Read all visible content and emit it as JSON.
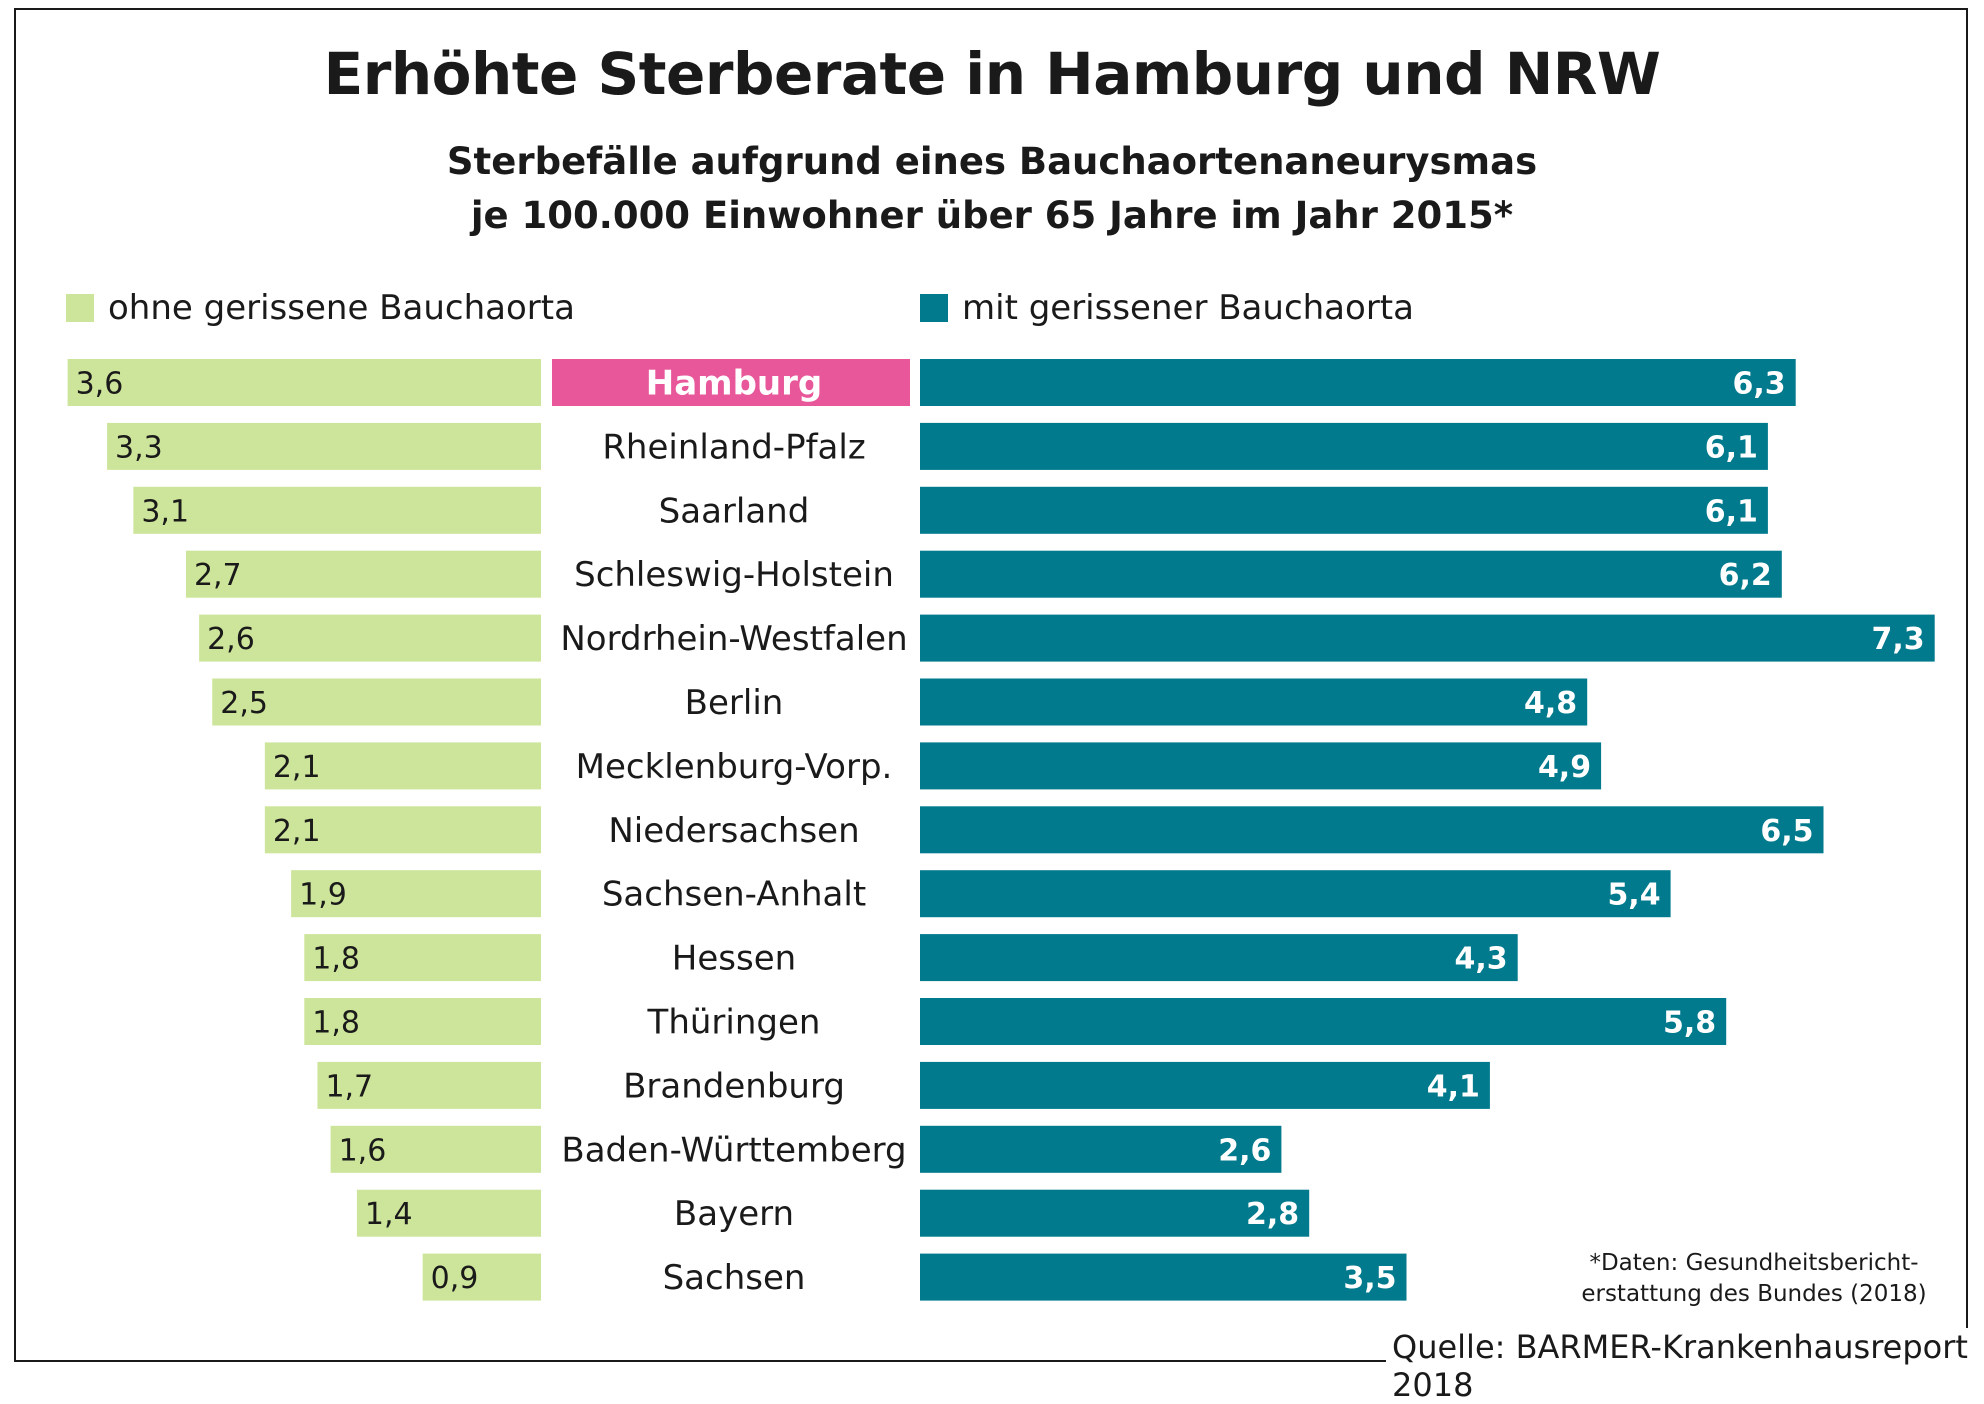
{
  "title": "Erhöhte Sterberate in Hamburg und NRW",
  "subtitle_line1": "Sterbefälle aufgrund eines Bauchaortenaneurysmas",
  "subtitle_line2": "je 100.000 Einwohner über 65 Jahre im Jahr 2015*",
  "footnote": "*Daten: Gesundheitsbericht-erstattung des Bundes (2018)",
  "source": "Quelle: BARMER-Krankenhausreport 2018",
  "colors": {
    "left_bar": "#cde59a",
    "right_bar": "#007a8c",
    "highlight": "#e8579a",
    "text_dark": "#1a1a1a",
    "text_light": "#ffffff"
  },
  "chart_data": {
    "type": "bar",
    "orientation": "horizontal-diverging",
    "title": "Erhöhte Sterberate in Hamburg und NRW",
    "categories": [
      "Hamburg",
      "Rheinland-Pfalz",
      "Saarland",
      "Schleswig-Holstein",
      "Nordrhein-Westfalen",
      "Berlin",
      "Mecklenburg-Vorp.",
      "Niedersachsen",
      "Sachsen-Anhalt",
      "Hessen",
      "Thüringen",
      "Brandenburg",
      "Baden-Württemberg",
      "Bayern",
      "Sachsen"
    ],
    "highlight_category": "Hamburg",
    "series": [
      {
        "name": "ohne gerissene Bauchaorta",
        "side": "left",
        "values": [
          3.6,
          3.3,
          3.1,
          2.7,
          2.6,
          2.5,
          2.1,
          2.1,
          1.9,
          1.8,
          1.8,
          1.7,
          1.6,
          1.4,
          0.9
        ],
        "labels": [
          "3,6",
          "3,3",
          "3,1",
          "2,7",
          "2,6",
          "2,5",
          "2,1",
          "2,1",
          "1,9",
          "1,8",
          "1,8",
          "1,7",
          "1,6",
          "1,4",
          "0,9"
        ]
      },
      {
        "name": "mit gerissener Bauchaorta",
        "side": "right",
        "values": [
          6.3,
          6.1,
          6.1,
          6.2,
          7.3,
          4.8,
          4.9,
          6.5,
          5.4,
          4.3,
          5.8,
          4.1,
          2.6,
          2.8,
          3.5
        ],
        "labels": [
          "6,3",
          "6,1",
          "6,1",
          "6,2",
          "7,3",
          "4,8",
          "4,9",
          "6,5",
          "5,4",
          "4,3",
          "5,8",
          "4,1",
          "2,6",
          "2,8",
          "3,5"
        ]
      }
    ],
    "legend_position": "top",
    "grid": false
  }
}
